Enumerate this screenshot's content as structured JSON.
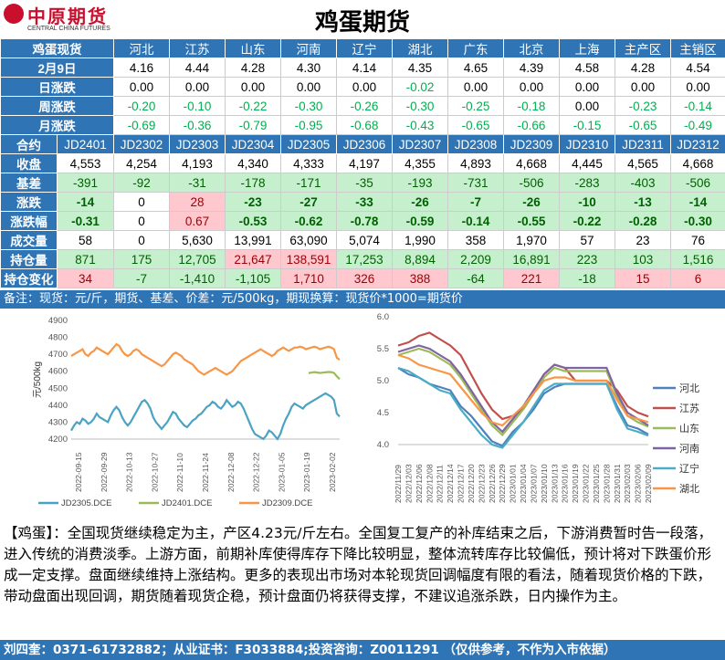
{
  "header": {
    "logo_cn": "中原期货",
    "logo_en": "CENTRAL CHINA FUTURES",
    "title": "鸡蛋期货"
  },
  "spot": {
    "label": "鸡蛋现货",
    "regions": [
      "河北",
      "江苏",
      "山东",
      "河南",
      "辽宁",
      "湖北",
      "广东",
      "北京",
      "上海",
      "主产区",
      "主销区"
    ],
    "rows": [
      {
        "label": "2月9日",
        "values": [
          "4.16",
          "4.44",
          "4.28",
          "4.30",
          "4.14",
          "4.35",
          "4.65",
          "4.39",
          "4.58",
          "4.28",
          "4.54"
        ]
      },
      {
        "label": "日涨跌",
        "values": [
          "0.00",
          "0.00",
          "0.00",
          "0.00",
          "0.00",
          "-0.02",
          "0.00",
          "0.00",
          "0.00",
          "0.00",
          "0.00"
        ]
      },
      {
        "label": "周涨跌",
        "values": [
          "-0.20",
          "-0.10",
          "-0.22",
          "-0.30",
          "-0.26",
          "-0.30",
          "-0.25",
          "-0.18",
          "0.00",
          "-0.23",
          "-0.14"
        ]
      },
      {
        "label": "月涨跌",
        "values": [
          "-0.69",
          "-0.36",
          "-0.79",
          "-0.95",
          "-0.68",
          "-0.43",
          "-0.65",
          "-0.66",
          "-0.15",
          "-0.65",
          "-0.49"
        ]
      }
    ]
  },
  "futures": {
    "label": "合约",
    "contracts": [
      "JD2401",
      "JD2302",
      "JD2303",
      "JD2304",
      "JD2305",
      "JD2306",
      "JD2307",
      "JD2308",
      "JD2309",
      "JD2310",
      "JD2311",
      "JD2312"
    ],
    "rows": [
      {
        "label": "收盘",
        "values": [
          "4,553",
          "4,254",
          "4,193",
          "4,340",
          "4,333",
          "4,197",
          "4,355",
          "4,893",
          "4,668",
          "4,445",
          "4,565",
          "4,668"
        ]
      },
      {
        "label": "基差",
        "values": [
          "-391",
          "-92",
          "-31",
          "-178",
          "-171",
          "-35",
          "-193",
          "-731",
          "-506",
          "-283",
          "-403",
          "-506"
        ]
      },
      {
        "label": "涨跌",
        "values": [
          "-14",
          "0",
          "28",
          "-23",
          "-27",
          "-33",
          "-26",
          "-7",
          "-26",
          "-10",
          "-13",
          "-14"
        ]
      },
      {
        "label": "涨跌幅",
        "values": [
          "-0.31",
          "0",
          "0.67",
          "-0.53",
          "-0.62",
          "-0.78",
          "-0.59",
          "-0.14",
          "-0.55",
          "-0.22",
          "-0.28",
          "-0.30"
        ]
      },
      {
        "label": "成交量",
        "values": [
          "58",
          "0",
          "5,630",
          "13,991",
          "63,090",
          "5,074",
          "1,990",
          "358",
          "1,970",
          "57",
          "23",
          "76"
        ]
      },
      {
        "label": "持仓量",
        "values": [
          "871",
          "175",
          "12,705",
          "21,647",
          "138,591",
          "17,253",
          "8,894",
          "2,209",
          "16,891",
          "223",
          "103",
          "1,516"
        ]
      },
      {
        "label": "持仓变化",
        "values": [
          "34",
          "-7",
          "-1,410",
          "-1,105",
          "1,710",
          "326",
          "388",
          "-64",
          "221",
          "-18",
          "15",
          "6"
        ]
      }
    ]
  },
  "note": "备注：现货：元/斤，期货、基差、价差：元/500kg，期现换算：现货价*1000=期货价",
  "left_chart_data": {
    "type": "line",
    "ylabel": "元/500kg",
    "ylim": [
      4200,
      4900
    ],
    "yticks": [
      "4200",
      "4300",
      "4400",
      "4500",
      "4600",
      "4700",
      "4800",
      "4900"
    ],
    "xticks": [
      "2022-09-15",
      "2022-09-29",
      "2022-10-13",
      "2022-10-27",
      "2022-11-10",
      "2022-11-24",
      "2022-12-08",
      "2022-12-22",
      "2023-01-05",
      "2023-01-19",
      "2023-02-02"
    ],
    "legend": [
      "JD2305.DCE",
      "JD2401.DCE",
      "JD2309.DCE"
    ],
    "colors": [
      "#4ba3c3",
      "#9bbb59",
      "#f79646"
    ],
    "series": [
      {
        "name": "JD2305.DCE",
        "values": [
          4250,
          4280,
          4300,
          4290,
          4320,
          4310,
          4290,
          4300,
          4320,
          4350,
          4330,
          4320,
          4310,
          4300,
          4340,
          4370,
          4390,
          4370,
          4330,
          4300,
          4280,
          4300,
          4330,
          4360,
          4390,
          4420,
          4430,
          4410,
          4380,
          4330,
          4300,
          4280,
          4260,
          4280,
          4300,
          4330,
          4360,
          4350,
          4320,
          4300,
          4280,
          4270,
          4290,
          4310,
          4320,
          4340,
          4350,
          4370,
          4390,
          4400,
          4420,
          4410,
          4390,
          4380,
          4400,
          4430,
          4410,
          4390,
          4400,
          4420,
          4410,
          4380,
          4340,
          4300,
          4260,
          4230,
          4220,
          4210,
          4200,
          4220,
          4250,
          4240,
          4220,
          4200,
          4230,
          4280,
          4320,
          4350,
          4390,
          4410,
          4400,
          4390,
          4380,
          4400,
          4410,
          4420,
          4430,
          4440,
          4450,
          4460,
          4470,
          4460,
          4450,
          4430,
          4350,
          4333
        ]
      },
      {
        "name": "JD2401.DCE",
        "values": [
          null,
          null,
          null,
          null,
          null,
          null,
          null,
          null,
          null,
          null,
          null,
          null,
          null,
          null,
          null,
          null,
          null,
          null,
          null,
          null,
          null,
          null,
          null,
          null,
          null,
          null,
          null,
          null,
          null,
          null,
          null,
          null,
          null,
          null,
          null,
          null,
          null,
          null,
          null,
          null,
          null,
          null,
          null,
          null,
          null,
          null,
          null,
          null,
          null,
          null,
          null,
          null,
          null,
          null,
          null,
          null,
          null,
          null,
          null,
          null,
          null,
          null,
          null,
          null,
          null,
          null,
          null,
          null,
          null,
          null,
          null,
          null,
          null,
          null,
          null,
          null,
          null,
          null,
          null,
          null,
          null,
          null,
          null,
          null,
          4590,
          4592,
          4595,
          4593,
          4590,
          4592,
          4594,
          4596,
          4595,
          4590,
          4570,
          4553
        ]
      },
      {
        "name": "JD2309.DCE",
        "values": [
          4690,
          4700,
          4710,
          4720,
          4730,
          4700,
          4690,
          4710,
          4720,
          4740,
          4730,
          4720,
          4710,
          4700,
          4720,
          4740,
          4760,
          4750,
          4720,
          4700,
          4690,
          4700,
          4720,
          4730,
          4720,
          4700,
          4690,
          4680,
          4670,
          4660,
          4650,
          4640,
          4630,
          4640,
          4660,
          4680,
          4700,
          4710,
          4700,
          4690,
          4670,
          4660,
          4650,
          4640,
          4620,
          4600,
          4590,
          4580,
          4590,
          4600,
          4610,
          4620,
          4610,
          4600,
          4590,
          4580,
          4590,
          4600,
          4620,
          4640,
          4660,
          4670,
          4680,
          4690,
          4700,
          4710,
          4720,
          4730,
          4720,
          4710,
          4700,
          4690,
          4700,
          4720,
          4730,
          4740,
          4730,
          4720,
          4730,
          4740,
          4740,
          4745,
          4740,
          4730,
          4735,
          4740,
          4745,
          4740,
          4730,
          4735,
          4740,
          4745,
          4740,
          4730,
          4680,
          4668
        ]
      }
    ]
  },
  "right_chart_data": {
    "type": "line",
    "ylim": [
      4.0,
      6.0
    ],
    "yticks": [
      "4.0",
      "4.5",
      "5.0",
      "5.5",
      "6.0"
    ],
    "xticks": [
      "2022/11/29",
      "2022/12/03",
      "2022/12/06",
      "2022/12/08",
      "2022/12/11",
      "2022/12/14",
      "2022/12/17",
      "2022/12/20",
      "2022/12/23",
      "2022/12/26",
      "2022/12/29",
      "2023/01/01",
      "2023/01/04",
      "2023/01/07",
      "2023/01/10",
      "2023/01/13",
      "2023/01/16",
      "2023/01/19",
      "2023/01/22",
      "2023/01/25",
      "2023/01/28",
      "2023/01/31",
      "2023/02/03",
      "2023/02/06",
      "2023/02/09"
    ],
    "legend": [
      "河北",
      "江苏",
      "山东",
      "河南",
      "辽宁",
      "湖北"
    ],
    "colors": [
      "#4f81bd",
      "#c0504d",
      "#9bbb59",
      "#8064a2",
      "#4bacc6",
      "#f79646"
    ],
    "series": [
      {
        "name": "河北",
        "values": [
          5.2,
          5.1,
          5.05,
          4.95,
          4.9,
          4.85,
          4.6,
          4.45,
          4.25,
          4.05,
          3.98,
          4.2,
          4.35,
          4.55,
          4.8,
          4.9,
          4.95,
          4.95,
          4.95,
          4.95,
          4.95,
          4.6,
          4.3,
          4.25,
          4.16
        ]
      },
      {
        "name": "江苏",
        "values": [
          5.55,
          5.6,
          5.7,
          5.75,
          5.65,
          5.55,
          5.4,
          5.1,
          4.8,
          4.55,
          4.4,
          4.45,
          4.55,
          4.8,
          5.1,
          5.25,
          5.2,
          5.0,
          5.0,
          5.0,
          5.0,
          4.85,
          4.6,
          4.5,
          4.44
        ]
      },
      {
        "name": "山东",
        "values": [
          5.4,
          5.45,
          5.5,
          5.45,
          5.35,
          5.25,
          5.05,
          4.8,
          4.55,
          4.3,
          4.15,
          4.35,
          4.55,
          4.8,
          5.05,
          5.2,
          5.15,
          5.15,
          5.15,
          5.15,
          5.15,
          4.75,
          4.45,
          4.35,
          4.28
        ]
      },
      {
        "name": "河南",
        "values": [
          5.45,
          5.5,
          5.55,
          5.5,
          5.4,
          5.3,
          5.1,
          4.85,
          4.6,
          4.35,
          4.2,
          4.4,
          4.6,
          4.85,
          5.1,
          5.25,
          5.2,
          5.2,
          5.2,
          5.2,
          5.2,
          4.8,
          4.5,
          4.4,
          4.3
        ]
      },
      {
        "name": "辽宁",
        "values": [
          5.2,
          5.15,
          5.05,
          4.95,
          4.85,
          4.8,
          4.55,
          4.35,
          4.15,
          4.0,
          3.95,
          4.15,
          4.35,
          4.6,
          4.85,
          4.95,
          4.95,
          4.95,
          4.95,
          4.95,
          4.95,
          4.55,
          4.25,
          4.2,
          4.14
        ]
      },
      {
        "name": "湖北",
        "values": [
          5.4,
          5.35,
          5.25,
          5.2,
          5.15,
          5.1,
          4.9,
          4.7,
          4.5,
          4.35,
          4.3,
          4.45,
          4.6,
          4.8,
          5.0,
          5.05,
          5.05,
          5.0,
          5.0,
          5.0,
          5.0,
          4.7,
          4.45,
          4.4,
          4.35
        ]
      }
    ]
  },
  "commentary": "【鸡蛋】：全国现货继续稳定为主，产区4.23元/斤左右。全国复工复产的补库结束之后，下游消费暂时告一段落，进入传统的消费淡季。上游方面，前期补库使得库存下降比较明显，整体流转库存比较偏低，预计将对下跌蛋价形成一定支撑。盘面继续维持上涨结构。更多的表现出市场对本轮现货回调幅度有限的看法，随着现货价格的下跌， 带动盘面出现回调，期货随着现货企稳，预计盘面仍将获得支撑，不建议追涨杀跌，日内操作为主。",
  "footer": "刘四奎：0371-61732882；从业证书：F3033884;投资咨询：Z0011291 （仅供参考，不作为入市依据）"
}
